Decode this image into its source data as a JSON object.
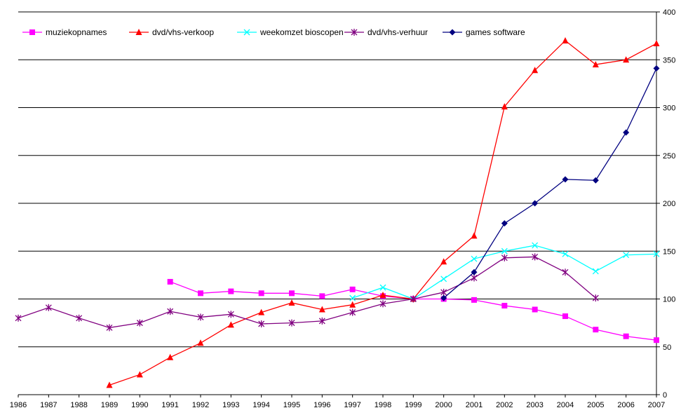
{
  "chart_data": {
    "type": "line",
    "title": "",
    "xlabel": "",
    "ylabel": "",
    "x": [
      "1986",
      "1987",
      "1988",
      "1989",
      "1990",
      "1991",
      "1992",
      "1993",
      "1994",
      "1995",
      "1996",
      "1997",
      "1998",
      "1999",
      "2000",
      "2001",
      "2002",
      "2003",
      "2004",
      "2005",
      "2006",
      "2007"
    ],
    "ylim": [
      0,
      400
    ],
    "yticks": [
      0,
      50,
      100,
      150,
      200,
      250,
      300,
      350,
      400
    ],
    "y_axis_side": "right",
    "grid": "horizontal",
    "legend_position": "top-left",
    "series": [
      {
        "name": "muziekopnames",
        "color": "#ff00ff",
        "marker": "square",
        "values": [
          null,
          null,
          null,
          null,
          null,
          118,
          106,
          108,
          106,
          106,
          103,
          110,
          103,
          100,
          100,
          99,
          93,
          89,
          82,
          68,
          61,
          57
        ]
      },
      {
        "name": "dvd/vhs-verkoop",
        "color": "#ff0000",
        "marker": "triangle",
        "values": [
          null,
          null,
          null,
          10,
          21,
          39,
          54,
          73,
          86,
          96,
          89,
          94,
          104,
          100,
          139,
          166,
          301,
          339,
          370,
          345,
          350,
          367
        ]
      },
      {
        "name": "weekomzet bioscopen",
        "color": "#00ffff",
        "marker": "x",
        "values": [
          null,
          null,
          null,
          null,
          null,
          null,
          null,
          null,
          null,
          null,
          null,
          101,
          112,
          100,
          121,
          142,
          150,
          156,
          147,
          129,
          146,
          147
        ]
      },
      {
        "name": "dvd/vhs-verhuur",
        "color": "#800080",
        "marker": "asterisk",
        "values": [
          80,
          91,
          80,
          70,
          75,
          87,
          81,
          84,
          74,
          75,
          77,
          86,
          95,
          100,
          107,
          122,
          143,
          144,
          128,
          101,
          null,
          null
        ]
      },
      {
        "name": "games software",
        "color": "#000080",
        "marker": "diamond",
        "values": [
          null,
          null,
          null,
          null,
          null,
          null,
          null,
          null,
          null,
          null,
          null,
          null,
          null,
          null,
          101,
          128,
          179,
          200,
          225,
          224,
          274,
          341
        ]
      }
    ]
  }
}
